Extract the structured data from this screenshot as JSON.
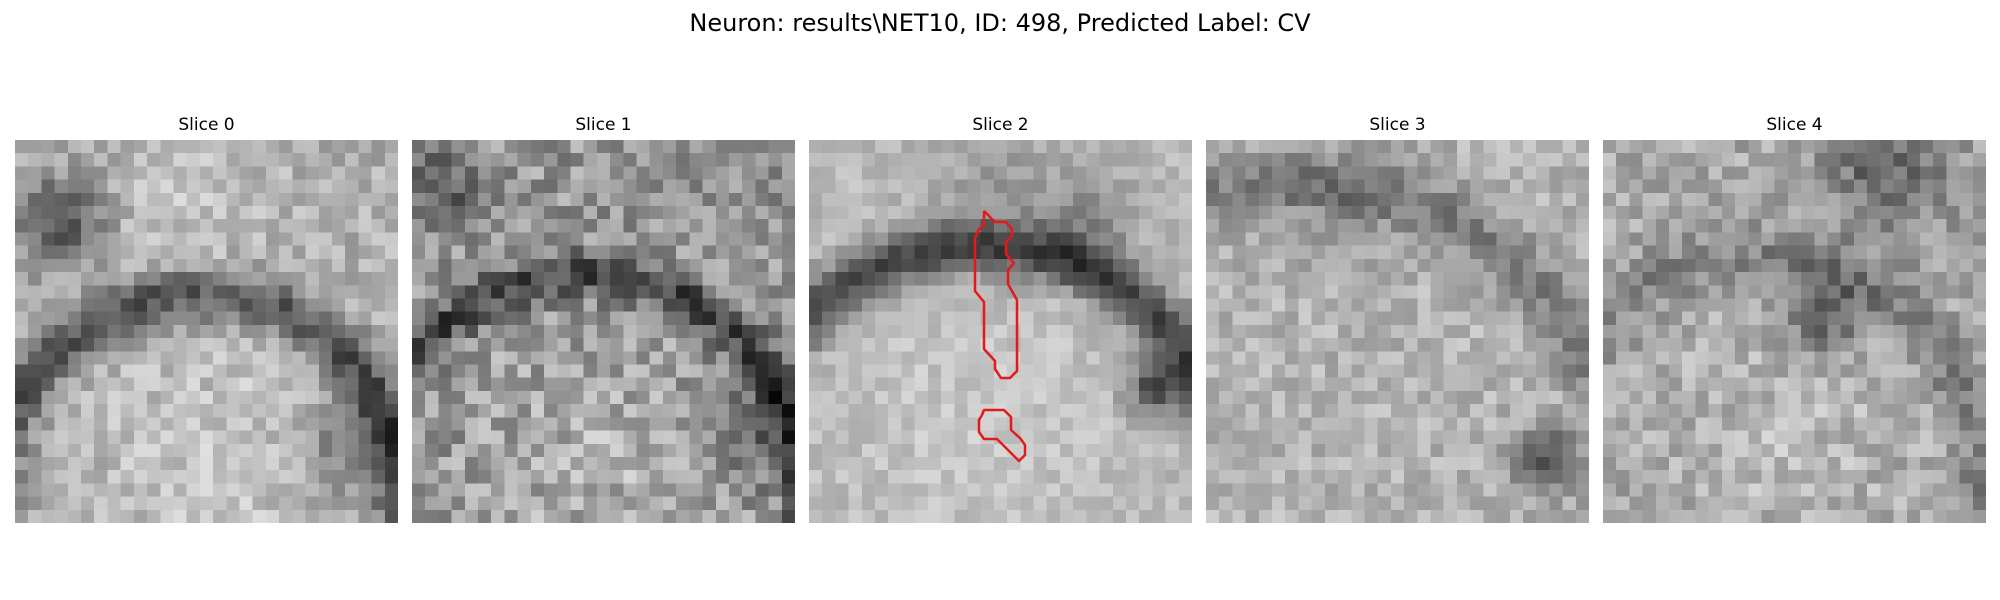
{
  "figure": {
    "title": "Neuron: results\\NET10, ID: 498, Predicted Label: CV"
  },
  "panels": [
    {
      "title": "Slice 0",
      "has_contour": false
    },
    {
      "title": "Slice 1",
      "has_contour": false
    },
    {
      "title": "Slice 2",
      "has_contour": true,
      "contour_color": "#e61919"
    },
    {
      "title": "Slice 3",
      "has_contour": false
    },
    {
      "title": "Slice 4",
      "has_contour": false
    }
  ],
  "colormap": "gray"
}
